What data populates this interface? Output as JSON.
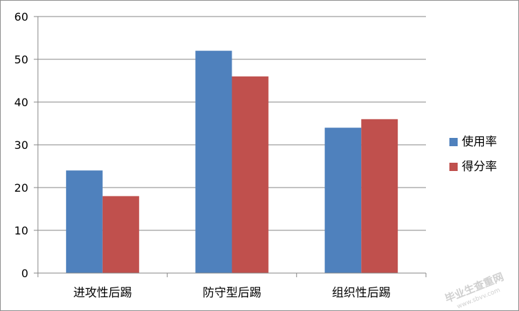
{
  "chart_data": {
    "type": "bar",
    "categories": [
      "进攻性后踢",
      "防守型后踢",
      "组织性后踢"
    ],
    "series": [
      {
        "name": "使用率",
        "values": [
          24,
          52,
          34
        ],
        "color": "#4f81bd"
      },
      {
        "name": "得分率",
        "values": [
          18,
          46,
          36
        ],
        "color": "#c0504d"
      }
    ],
    "ylim": [
      0,
      60
    ],
    "yticks": [
      0,
      10,
      20,
      30,
      40,
      50,
      60
    ],
    "grid": true,
    "legend_position": "right",
    "title": "",
    "xlabel": "",
    "ylabel": ""
  },
  "watermark": {
    "text": "毕业生查重网",
    "subtext": "www.sbvv.com"
  }
}
